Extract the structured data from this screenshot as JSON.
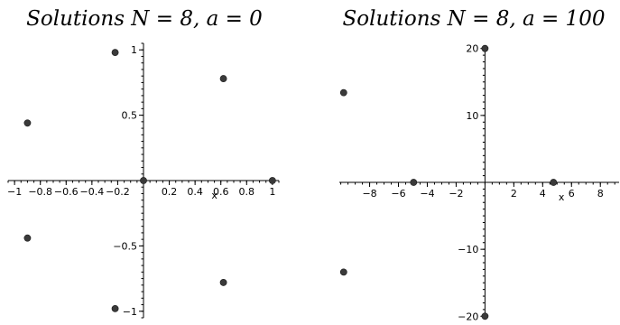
{
  "chart_data": [
    {
      "type": "scatter",
      "title": "Solutions N = 8,  a = 0",
      "xlabel": "x",
      "ylabel": "",
      "xlim": [
        -1.05,
        1.05
      ],
      "ylim": [
        -1.05,
        1.05
      ],
      "x_ticks": [
        -1,
        -0.8,
        -0.6,
        -0.4,
        -0.2,
        0.2,
        0.4,
        0.6,
        0.8,
        1
      ],
      "x_tick_labels": [
        "−1",
        "−0.8",
        "−0.6",
        "−0.4",
        "−0.2",
        "0.2",
        "0.4",
        "0.6",
        "0.8",
        "1"
      ],
      "y_ticks": [
        -1,
        -0.5,
        0.5,
        1
      ],
      "y_tick_labels": [
        "−1",
        "−0.5",
        "0.5",
        "1"
      ],
      "grid": false,
      "points": [
        {
          "x": 0,
          "y": 0
        },
        {
          "x": 1,
          "y": 0
        },
        {
          "x": 0.62,
          "y": 0.78
        },
        {
          "x": 0.62,
          "y": -0.78
        },
        {
          "x": -0.22,
          "y": 0.98
        },
        {
          "x": -0.22,
          "y": -0.98
        },
        {
          "x": -0.9,
          "y": 0.44
        },
        {
          "x": -0.9,
          "y": -0.44
        }
      ]
    },
    {
      "type": "scatter",
      "title": "Solutions N = 8,  a = 100",
      "xlabel": "x",
      "ylabel": "",
      "xlim": [
        -10.1,
        9.3
      ],
      "ylim": [
        -20.5,
        20.5
      ],
      "x_ticks": [
        -8,
        -6,
        -4,
        -2,
        2,
        4,
        6,
        8
      ],
      "x_tick_labels": [
        "−8",
        "−6",
        "−4",
        "−2",
        "2",
        "4",
        "6",
        "8"
      ],
      "y_ticks": [
        -20,
        -10,
        10,
        20
      ],
      "y_tick_labels": [
        "−20",
        "−10",
        "10",
        "20"
      ],
      "grid": false,
      "points": [
        {
          "x": 0,
          "y": 20
        },
        {
          "x": 0,
          "y": -20
        },
        {
          "x": -9.8,
          "y": 13.4
        },
        {
          "x": -9.8,
          "y": -13.4
        },
        {
          "x": -4.95,
          "y": 0
        },
        {
          "x": 4.75,
          "y": 0
        }
      ]
    }
  ]
}
